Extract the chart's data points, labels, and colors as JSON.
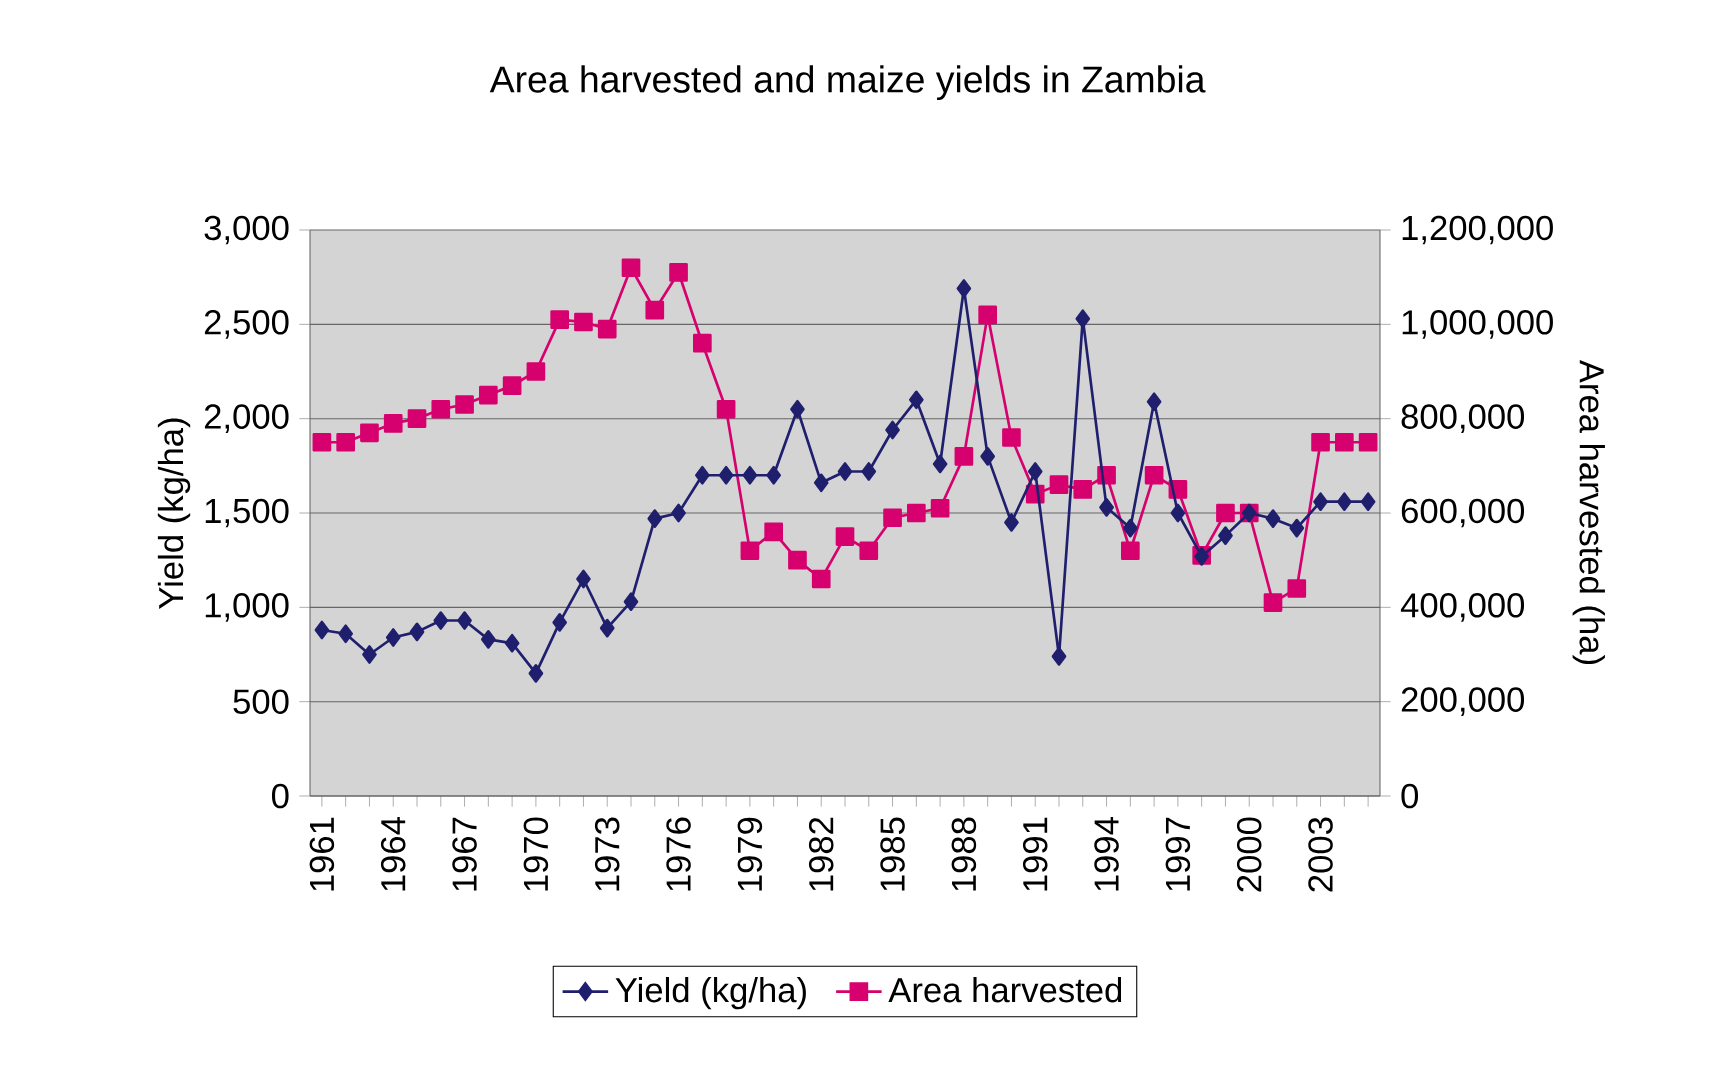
{
  "chart_data": {
    "type": "line",
    "title": "Area harvested and maize yields in Zambia",
    "ylabel": "Yield (kg/ha)",
    "y2label": "Area harvested (ha)",
    "categories": [
      "1961",
      null,
      null,
      "1964",
      null,
      null,
      "1967",
      null,
      null,
      "1970",
      null,
      null,
      "1973",
      null,
      null,
      "1976",
      null,
      null,
      "1979",
      null,
      null,
      "1982",
      null,
      null,
      "1985",
      null,
      null,
      "1988",
      null,
      null,
      "1991",
      null,
      null,
      "1994",
      null,
      null,
      "1997",
      null,
      null,
      "2000",
      null,
      null,
      "2003",
      null,
      null
    ],
    "series": [
      {
        "name": "Yield (kg/ha)",
        "color": "#1f1f6e",
        "marker": "diamond",
        "values": [
          880,
          860,
          750,
          840,
          870,
          930,
          930,
          830,
          810,
          650,
          920,
          1150,
          890,
          1030,
          1470,
          1500,
          1700,
          1700,
          1700,
          1700,
          2050,
          1660,
          1720,
          1720,
          1940,
          2100,
          1760,
          2690,
          1800,
          1450,
          1720,
          740,
          2530,
          1530,
          1420,
          2090,
          1500,
          1270,
          1380,
          1500,
          1470,
          1420,
          1560,
          1560,
          1560
        ]
      },
      {
        "name": "Area harvested",
        "color": "#d6006e",
        "marker": "square",
        "axis": "y2",
        "values": [
          750000,
          750000,
          770000,
          790000,
          800000,
          820000,
          830000,
          850000,
          870000,
          900000,
          1010000,
          1005000,
          990000,
          1120000,
          1030000,
          1110000,
          960000,
          820000,
          520000,
          560000,
          500000,
          460000,
          550000,
          520000,
          590000,
          600000,
          610000,
          720000,
          1020000,
          760000,
          640000,
          660000,
          650000,
          680000,
          520000,
          680000,
          650000,
          510000,
          600000,
          600000,
          410000,
          440000,
          750000,
          750000,
          750000
        ]
      }
    ],
    "ylim": [
      0,
      3000
    ],
    "yticks": [
      0,
      500,
      {
        "value": 1000,
        "label": "1,000"
      },
      {
        "value": 1500,
        "label": "1,500"
      },
      {
        "value": 2000,
        "label": "2,000"
      },
      {
        "value": 2500,
        "label": "2,500"
      },
      {
        "value": 3000,
        "label": "3,000"
      }
    ],
    "y2lim": [
      0,
      1200000
    ],
    "y2ticks": [
      0,
      {
        "value": 200000,
        "label": "200,000"
      },
      {
        "value": 400000,
        "label": "400,000"
      },
      {
        "value": 600000,
        "label": "600,000"
      },
      {
        "value": 800000,
        "label": "800,000"
      },
      {
        "value": 1000000,
        "label": "1,000,000"
      },
      {
        "value": 1200000,
        "label": "1,200,000"
      }
    ],
    "grid": "y",
    "legend": "bottom"
  }
}
